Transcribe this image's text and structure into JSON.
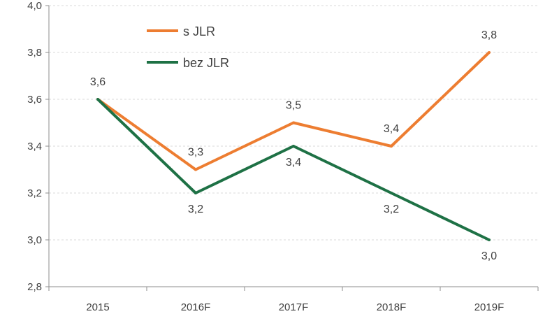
{
  "chart_data": {
    "type": "line",
    "categories": [
      "2015",
      "2016F",
      "2017F",
      "2018F",
      "2019F"
    ],
    "ylim": [
      2.8,
      4.0
    ],
    "yticks": [
      "2,8",
      "3,0",
      "3,2",
      "3,4",
      "3,6",
      "3,8",
      "4,0"
    ],
    "ytick_values": [
      2.8,
      3.0,
      3.2,
      3.4,
      3.6,
      3.8,
      4.0
    ],
    "grid": true,
    "legend_position": "top-center",
    "series": [
      {
        "name": "s JLR",
        "color": "#ed7d31",
        "values": [
          3.6,
          3.3,
          3.5,
          3.4,
          3.8
        ],
        "labels": [
          "3,6",
          "3,3",
          "3,5",
          "3,4",
          "3,8"
        ]
      },
      {
        "name": "bez JLR",
        "color": "#1e7145",
        "values": [
          3.6,
          3.2,
          3.4,
          3.2,
          3.0
        ],
        "labels": [
          "",
          "3,2",
          "3,4",
          "3,2",
          "3,0"
        ]
      }
    ]
  }
}
